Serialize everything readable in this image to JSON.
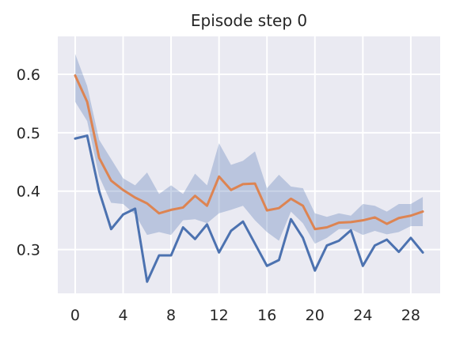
{
  "chart_data": {
    "type": "line",
    "title": "Episode step 0",
    "xlabel": "",
    "ylabel": "",
    "xlim": [
      -1.45,
      30.45
    ],
    "ylim": [
      0.225,
      0.665
    ],
    "xticks": [
      0,
      4,
      8,
      12,
      16,
      20,
      24,
      28
    ],
    "yticks": [
      0.3,
      0.4,
      0.5,
      0.6
    ],
    "ytick_labels": [
      "0.3",
      "0.4",
      "0.5",
      "0.6"
    ],
    "grid": true,
    "legend": "none",
    "x": [
      0,
      1,
      2,
      3,
      4,
      5,
      6,
      7,
      8,
      9,
      10,
      11,
      12,
      13,
      14,
      15,
      16,
      17,
      18,
      19,
      20,
      21,
      22,
      23,
      24,
      25,
      26,
      27,
      28,
      29
    ],
    "series": [
      {
        "color": "#4c72b0",
        "values": [
          0.49,
          0.495,
          0.4,
          0.335,
          0.36,
          0.37,
          0.245,
          0.29,
          0.29,
          0.338,
          0.318,
          0.343,
          0.295,
          0.332,
          0.348,
          0.31,
          0.272,
          0.282,
          0.352,
          0.32,
          0.264,
          0.307,
          0.315,
          0.333,
          0.272,
          0.307,
          0.317,
          0.296,
          0.32,
          0.295
        ]
      },
      {
        "color": "#dd8452",
        "values": [
          0.598,
          0.553,
          0.457,
          0.418,
          0.402,
          0.389,
          0.379,
          0.362,
          0.368,
          0.372,
          0.392,
          0.375,
          0.425,
          0.402,
          0.412,
          0.413,
          0.367,
          0.371,
          0.387,
          0.375,
          0.335,
          0.338,
          0.346,
          0.347,
          0.35,
          0.355,
          0.344,
          0.354,
          0.358,
          0.365
        ],
        "band_upper": [
          0.635,
          0.58,
          0.488,
          0.455,
          0.422,
          0.41,
          0.432,
          0.395,
          0.41,
          0.395,
          0.43,
          0.41,
          0.482,
          0.445,
          0.452,
          0.468,
          0.405,
          0.428,
          0.408,
          0.405,
          0.362,
          0.356,
          0.362,
          0.358,
          0.378,
          0.375,
          0.365,
          0.378,
          0.378,
          0.39
        ],
        "band_lower": [
          0.553,
          0.52,
          0.425,
          0.38,
          0.378,
          0.36,
          0.325,
          0.33,
          0.325,
          0.35,
          0.352,
          0.345,
          0.362,
          0.368,
          0.375,
          0.35,
          0.33,
          0.315,
          0.365,
          0.345,
          0.31,
          0.32,
          0.335,
          0.335,
          0.325,
          0.332,
          0.326,
          0.33,
          0.34,
          0.34
        ],
        "band_color": "#4c72b0"
      }
    ]
  }
}
